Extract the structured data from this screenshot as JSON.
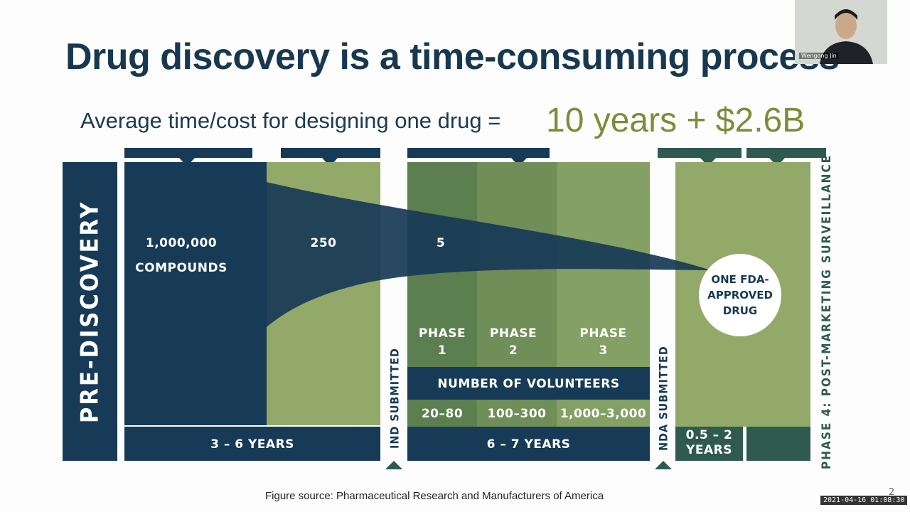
{
  "slide": {
    "title": "Drug discovery is a time-consuming process",
    "subtitle": "Average time/cost for designing one drug =",
    "highlight": "10 years + $2.6B",
    "source": "Figure source:  Pharmaceutical Research and Manufacturers of America",
    "page_number": "2"
  },
  "diagram": {
    "pre_discovery": "PRE-DISCOVERY",
    "compounds": [
      "1,000,000",
      "COMPOUNDS"
    ],
    "count_250": "250",
    "count_5": "5",
    "approved": [
      "ONE FDA-",
      "APPROVED",
      "DRUG"
    ],
    "ind": "IND SUBMITTED",
    "nda": "NDA SUBMITTED",
    "phase4": "PHASE 4: POST-MARKETING SURVEILLANCE",
    "phases": [
      {
        "line1": "PHASE",
        "line2": "1"
      },
      {
        "line1": "PHASE",
        "line2": "2"
      },
      {
        "line1": "PHASE",
        "line2": "3"
      }
    ],
    "volunteers_label": "NUMBER OF VOLUNTEERS",
    "volunteers": [
      "20–80",
      "100–300",
      "1,000–3,000"
    ],
    "years": [
      "3 – 6 YEARS",
      "6 – 7 YEARS",
      "0.5 – 2",
      "YEARS"
    ]
  },
  "colors": {
    "navy": "#173a56",
    "green_light": "#93a969",
    "green_mid": "#7e9a5f",
    "green_dark": "#5c7f4f"
  },
  "overlay": {
    "webcam_name": "Wengong Jin",
    "timestamp": "2021-04-16 01:08:30"
  }
}
